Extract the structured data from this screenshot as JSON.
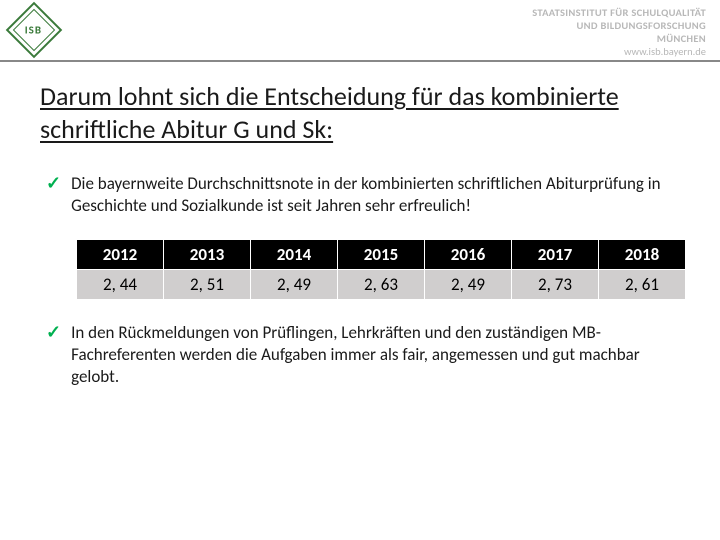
{
  "header": {
    "logo_text": "ISB",
    "org_line1": "STAATSINSTITUT FÜR SCHULQUALITÄT",
    "org_line2": "UND BILDUNGSFORSCHUNG",
    "org_line3": "MÜNCHEN",
    "url": "www.isb.bayern.de"
  },
  "title": "Darum lohnt sich die Entscheidung für das kombinierte schriftliche Abitur G und Sk:",
  "bullets": {
    "b1": "Die bayernweite Durchschnittsnote in der kombinierten schriftlichen Abiturprüfung in Geschichte und Sozialkunde ist seit Jahren sehr erfreulich!",
    "b2": "In den Rückmeldungen von Prüflingen, Lehrkräften und den zuständigen MB-Fachreferenten werden die Aufgaben immer als fair, angemessen und gut machbar gelobt."
  },
  "table": {
    "type": "table",
    "header_bg": "#000000",
    "header_fg": "#ffffff",
    "cell_bg": "#d0cece",
    "cell_fg": "#000000",
    "border_color": "#ffffff",
    "columns": [
      "2012",
      "2013",
      "2014",
      "2015",
      "2016",
      "2017",
      "2018"
    ],
    "rows": [
      [
        "2, 44",
        "2, 51",
        "2, 49",
        "2, 63",
        "2, 49",
        "2, 73",
        "2, 61"
      ]
    ],
    "font_size_pt": 13
  },
  "colors": {
    "check_green": "#00b050",
    "logo_green": "#3a7a3a",
    "header_grey": "#b8b8b8",
    "rule_grey": "#888888"
  }
}
